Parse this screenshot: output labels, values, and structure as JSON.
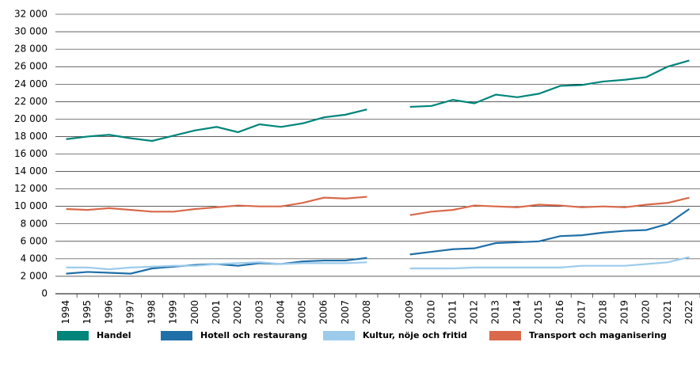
{
  "chart_data": {
    "type": "line",
    "categories": [
      "1994",
      "1995",
      "1996",
      "1997",
      "1998",
      "1999",
      "2000",
      "2001",
      "2002",
      "2003",
      "2004",
      "2005",
      "2006",
      "2007",
      "2008",
      null,
      "2009",
      "2010",
      "2011",
      "2012",
      "2013",
      "2014",
      "2015",
      "2016",
      "2017",
      "2018",
      "2019",
      "2020",
      "2021",
      "2022"
    ],
    "series": [
      {
        "name": "Handel",
        "color": "#00857a",
        "values": [
          17700,
          18000,
          18200,
          17800,
          17500,
          18100,
          18700,
          19100,
          18500,
          19400,
          19100,
          19500,
          20200,
          20500,
          21100,
          null,
          21400,
          21500,
          22200,
          21800,
          22800,
          22500,
          22900,
          23800,
          23900,
          24300,
          24500,
          24800,
          26000,
          26700
        ]
      },
      {
        "name": "Hotell och restaurang",
        "color": "#1f6fa8",
        "values": [
          2300,
          2500,
          2400,
          2300,
          2900,
          3100,
          3300,
          3400,
          3200,
          3500,
          3400,
          3700,
          3800,
          3800,
          4100,
          null,
          4500,
          4800,
          5100,
          5200,
          5800,
          5900,
          6000,
          6600,
          6700,
          7000,
          7200,
          7300,
          8000,
          9700
        ]
      },
      {
        "name": "Kultur, nöje och fritid",
        "color": "#9ccbec",
        "values": [
          3000,
          3000,
          2800,
          3000,
          3100,
          3200,
          3200,
          3400,
          3500,
          3600,
          3400,
          3500,
          3500,
          3500,
          3600,
          null,
          2900,
          2900,
          2900,
          3000,
          3000,
          3000,
          3000,
          3000,
          3200,
          3200,
          3200,
          3400,
          3600,
          4200
        ]
      },
      {
        "name": "Transport och maganisering",
        "color": "#d9694a",
        "values": [
          9700,
          9600,
          9800,
          9600,
          9400,
          9400,
          9700,
          9900,
          10100,
          10000,
          10000,
          10400,
          11000,
          10900,
          11100,
          null,
          9000,
          9400,
          9600,
          10100,
          10000,
          9900,
          10200,
          10100,
          9900,
          10000,
          9900,
          10200,
          10400,
          11000
        ]
      }
    ],
    "ylim": [
      0,
      32000
    ],
    "yticks": [
      0,
      {
        "value": 2000,
        "label": "2 000"
      },
      {
        "value": 4000,
        "label": "4 000"
      },
      {
        "value": 6000,
        "label": "6 000"
      },
      {
        "value": 8000,
        "label": "8 000"
      },
      {
        "value": 10000,
        "label": "10 000"
      },
      {
        "value": 12000,
        "label": "12 000"
      },
      {
        "value": 14000,
        "label": "14 000"
      },
      {
        "value": 16000,
        "label": "16 000"
      },
      {
        "value": 18000,
        "label": "18 000"
      },
      {
        "value": 20000,
        "label": "20 000"
      },
      {
        "value": 22000,
        "label": "22 000"
      },
      {
        "value": 24000,
        "label": "24 000"
      },
      {
        "value": 26000,
        "label": "26 000"
      },
      {
        "value": 28000,
        "label": "28 000"
      },
      {
        "value": 30000,
        "label": "30 000"
      },
      {
        "value": 32000,
        "label": "32 000"
      }
    ],
    "grid": true,
    "legend": "bottom"
  }
}
